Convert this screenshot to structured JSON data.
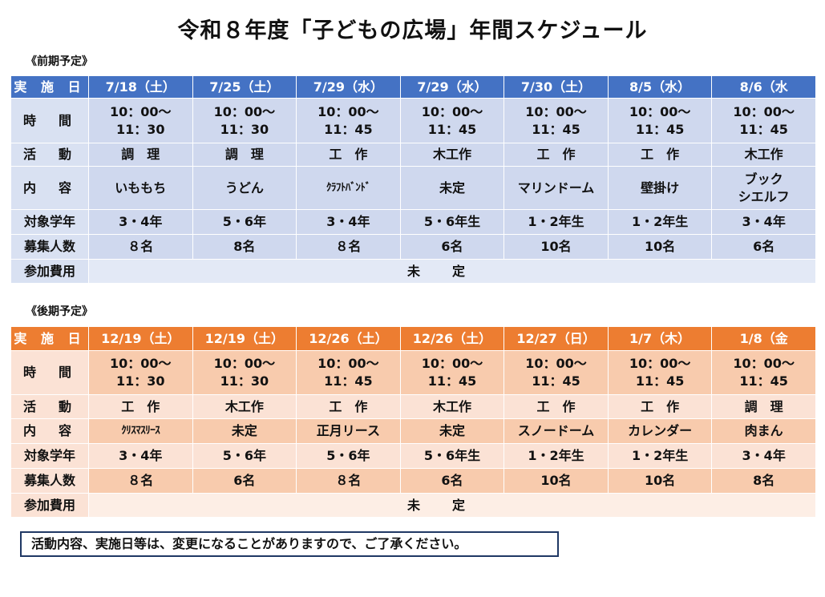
{
  "title": "令和８年度「子どもの広場」年間スケジュール",
  "first_half": {
    "label": "《前期予定》",
    "row_labels": {
      "date": "実 施 日",
      "time": "時　間",
      "activity": "活　動",
      "content": "内　容",
      "grade": "対象学年",
      "capacity": "募集人数",
      "fee": "参加費用"
    },
    "fee_value": "未定",
    "columns": [
      {
        "date": "7/18（土）",
        "time": "10：00～\n11：30",
        "activity": "調　理",
        "content": "いももち",
        "grade": "3・4年",
        "capacity": "８名"
      },
      {
        "date": "7/25（土）",
        "time": "10：00～\n11：30",
        "activity": "調　理",
        "content": "うどん",
        "grade": "5・6年",
        "capacity": "8名"
      },
      {
        "date": "7/29（水）",
        "time": "10：00～\n11：45",
        "activity": "工　作",
        "content": "ｸﾗﾌﾄﾊﾞﾝﾄﾞ",
        "grade": "3・4年",
        "capacity": "８名"
      },
      {
        "date": "7/29（水）",
        "time": "10：00～\n11：45",
        "activity": "木工作",
        "content": "未定",
        "grade": "5・6年生",
        "capacity": "6名"
      },
      {
        "date": "7/30（土）",
        "time": "10：00～\n11：45",
        "activity": "工　作",
        "content": "マリンドーム",
        "grade": "1・2年生",
        "capacity": "10名"
      },
      {
        "date": "8/5（水）",
        "time": "10：00～\n11：45",
        "activity": "工　作",
        "content": "壁掛け",
        "grade": "1・2年生",
        "capacity": "10名"
      },
      {
        "date": "8/6（水",
        "time": "10：00～\n11：45",
        "activity": "木工作",
        "content": "ブック\nシエルフ",
        "grade": "3・4年",
        "capacity": "6名"
      }
    ]
  },
  "second_half": {
    "label": "《後期予定》",
    "row_labels": {
      "date": "実 施 日",
      "time": "時　間",
      "activity": "活　動",
      "content": "内　容",
      "grade": "対象学年",
      "capacity": "募集人数",
      "fee": "参加費用"
    },
    "fee_value": "未定",
    "columns": [
      {
        "date": "12/19（土）",
        "time": "10：00～\n11：30",
        "activity": "工　作",
        "content": "ｸﾘｽﾏｽﾘｰｽ",
        "grade": "3・4年",
        "capacity": "８名"
      },
      {
        "date": "12/19（土）",
        "time": "10：00～\n11：30",
        "activity": "木工作",
        "content": "未定",
        "grade": "5・6年",
        "capacity": "6名"
      },
      {
        "date": "12/26（土）",
        "time": "10：00～\n11：45",
        "activity": "工　作",
        "content": "正月リース",
        "grade": "5・6年",
        "capacity": "８名"
      },
      {
        "date": "12/26（土）",
        "time": "10：00～\n11：45",
        "activity": "木工作",
        "content": "未定",
        "grade": "5・6年生",
        "capacity": "6名"
      },
      {
        "date": "12/27（日）",
        "time": "10：00～\n11：45",
        "activity": "工　作",
        "content": "スノードーム",
        "grade": "1・2年生",
        "capacity": "10名"
      },
      {
        "date": "1/7（木）",
        "time": "10：00～\n11：45",
        "activity": "工　作",
        "content": "カレンダー",
        "grade": "1・2年生",
        "capacity": "10名"
      },
      {
        "date": "1/8（金",
        "time": "10：00～\n11：45",
        "activity": "調　理",
        "content": "肉まん",
        "grade": "3・4年",
        "capacity": "8名"
      }
    ]
  },
  "notice": "活動内容、実施日等は、変更になることがありますので、ご了承ください。",
  "colors": {
    "first_header": "#4472c4",
    "first_cell": "#cfd8ee",
    "second_header": "#ed7d31",
    "second_cell": "#f8cbad"
  }
}
